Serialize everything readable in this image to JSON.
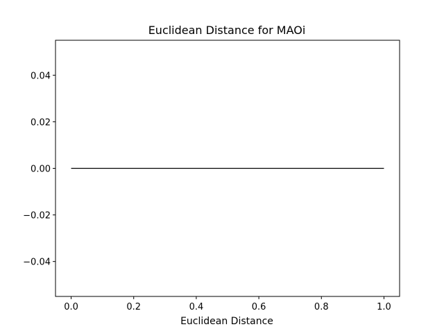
{
  "chart_data": {
    "type": "line",
    "title": "Euclidean Distance for MAOi",
    "xlabel": "Euclidean Distance",
    "ylabel": "",
    "xlim": [
      -0.05,
      1.05
    ],
    "ylim": [
      -0.055,
      0.055
    ],
    "x_ticks": [
      0.0,
      0.2,
      0.4,
      0.6,
      0.8,
      1.0
    ],
    "x_tick_labels": [
      "0.0",
      "0.2",
      "0.4",
      "0.6",
      "0.8",
      "1.0"
    ],
    "y_ticks": [
      -0.04,
      -0.02,
      0.0,
      0.02,
      0.04
    ],
    "y_tick_labels": [
      "−0.04",
      "−0.02",
      "0.00",
      "0.02",
      "0.04"
    ],
    "grid": false,
    "series": [
      {
        "color": "#000000",
        "x": [
          0.0,
          1.0
        ],
        "y": [
          0.0,
          0.0
        ]
      }
    ]
  }
}
